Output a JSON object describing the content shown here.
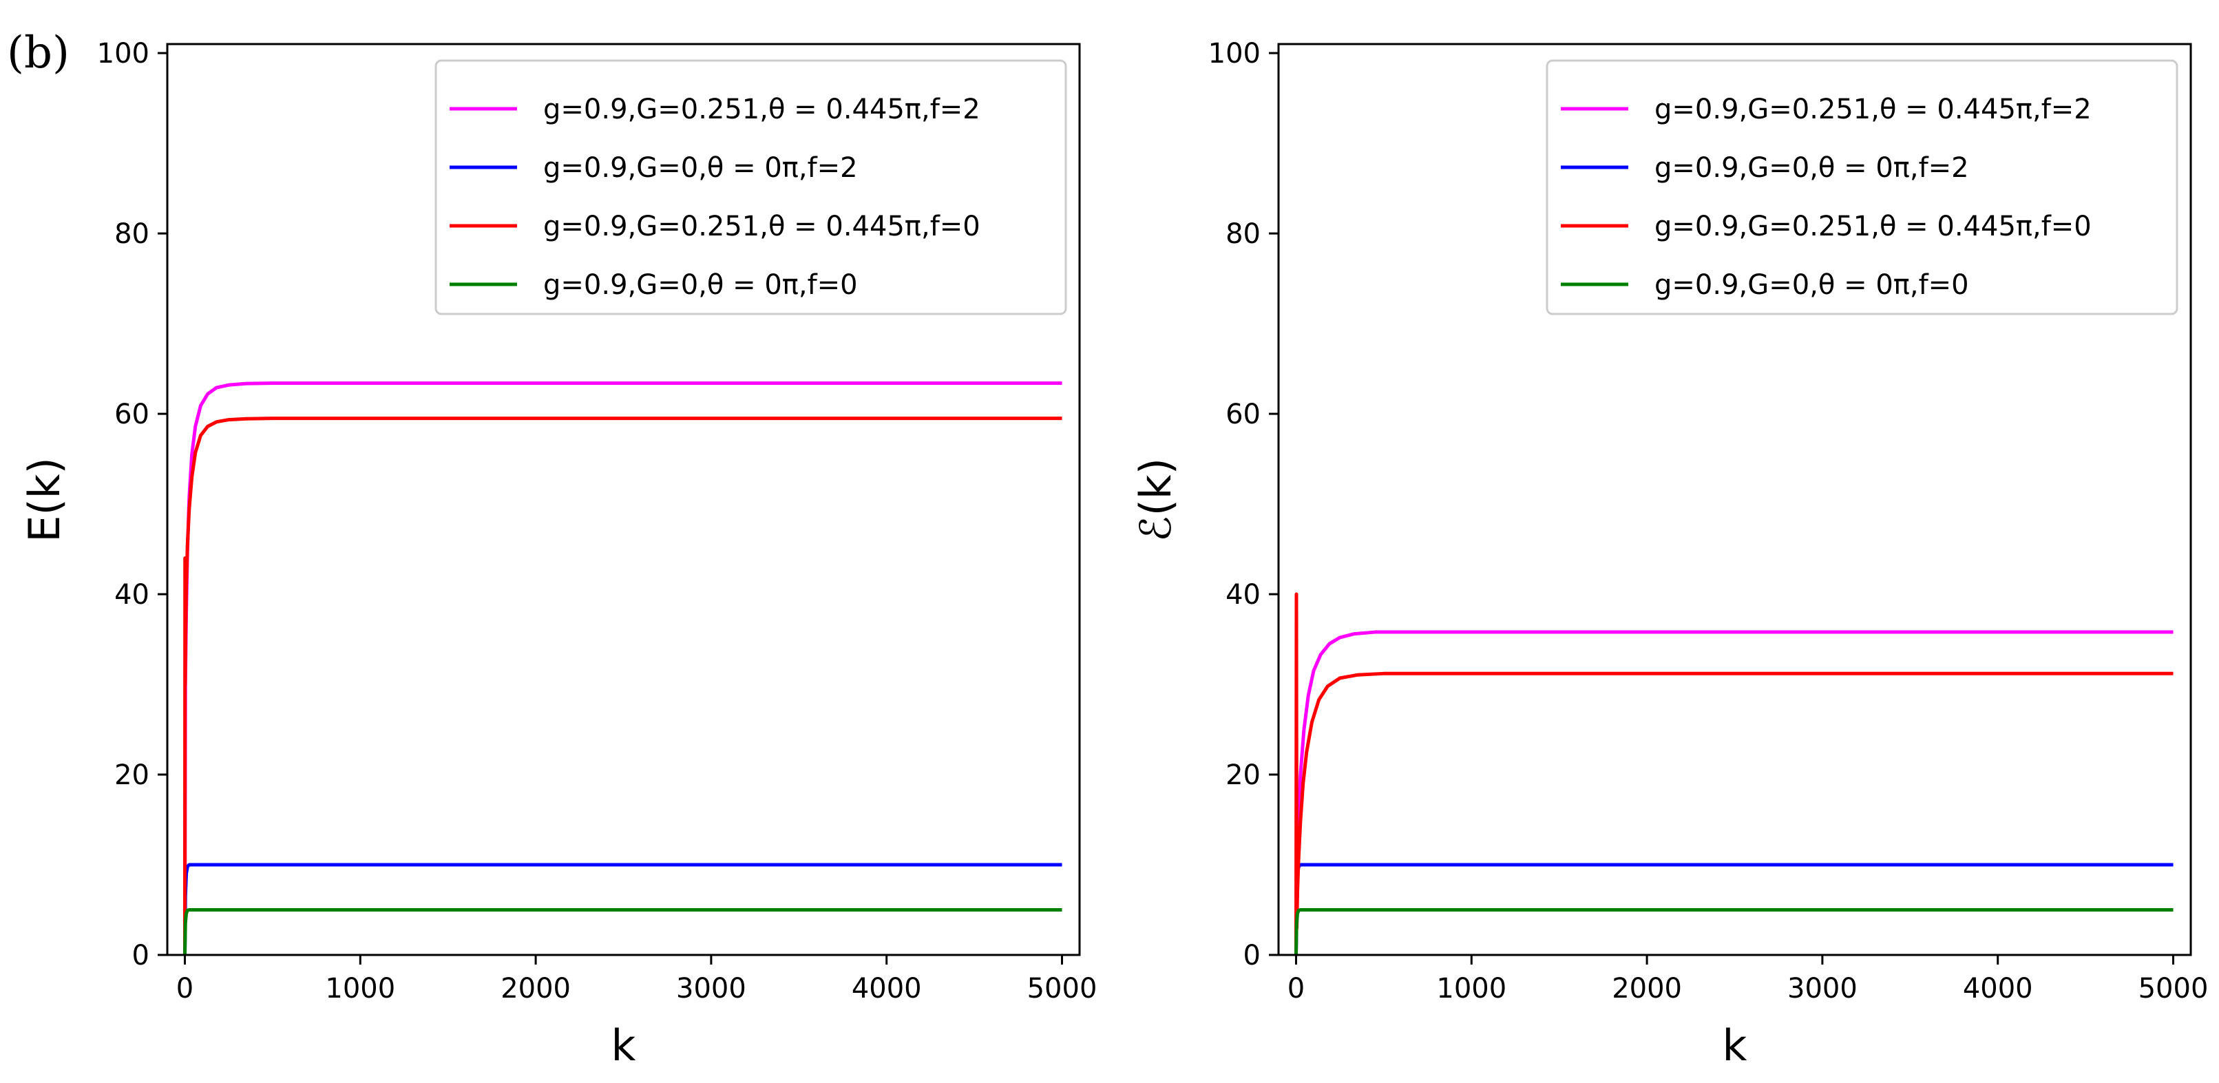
{
  "figure": {
    "panel_label": "(b)"
  },
  "chart_data": [
    {
      "type": "line",
      "title": "",
      "xlabel": "k",
      "ylabel": "E(k)",
      "xlim": [
        -100,
        5100
      ],
      "ylim": [
        0,
        101
      ],
      "xticks": [
        0,
        1000,
        2000,
        3000,
        4000,
        5000
      ],
      "yticks": [
        0,
        20,
        40,
        60,
        80,
        100
      ],
      "xtick_labels": [
        "0",
        "1000",
        "2000",
        "3000",
        "4000",
        "5000"
      ],
      "ytick_labels": [
        "0",
        "20",
        "40",
        "60",
        "80",
        "100"
      ],
      "grid": false,
      "legend_position": "top-right",
      "series": [
        {
          "name": "g=0.9,G=0.251,θ = 0.445π,f=2",
          "color": "#ff00ff",
          "x": [
            0,
            3,
            8,
            15,
            25,
            40,
            60,
            90,
            130,
            180,
            250,
            350,
            500,
            800,
            1500,
            3000,
            5000
          ],
          "y": [
            0,
            30.0,
            37.8,
            45.0,
            50.8,
            55.5,
            58.6,
            60.9,
            62.2,
            62.9,
            63.2,
            63.35,
            63.4,
            63.4,
            63.4,
            63.4,
            63.4
          ]
        },
        {
          "name": "g=0.9,G=0,θ = 0π,f=2",
          "color": "#0000ff",
          "x": [
            0,
            3,
            8,
            15,
            25,
            40,
            5000
          ],
          "y": [
            0,
            6.5,
            9.0,
            9.8,
            10.0,
            10.0,
            10.0
          ]
        },
        {
          "name": "g=0.9,G=0.251,θ = 0.445π,f=0",
          "color": "#ff0000",
          "x": [
            0,
            1,
            2,
            4,
            8,
            15,
            25,
            40,
            60,
            90,
            130,
            180,
            250,
            350,
            500,
            800,
            1500,
            3000,
            5000
          ],
          "y": [
            0,
            44.0,
            30.0,
            35.0,
            40.5,
            45.5,
            49.5,
            53.0,
            55.7,
            57.6,
            58.6,
            59.1,
            59.35,
            59.45,
            59.5,
            59.5,
            59.5,
            59.5,
            59.5
          ]
        },
        {
          "name": "g=0.9,G=0,θ = 0π,f=0",
          "color": "#008000",
          "x": [
            0,
            3,
            8,
            15,
            25,
            5000
          ],
          "y": [
            0,
            3.5,
            4.6,
            4.95,
            5.0,
            5.0
          ]
        }
      ]
    },
    {
      "type": "line",
      "title": "",
      "xlabel": "k",
      "ylabel": "ℰ(k)",
      "xlim": [
        -100,
        5100
      ],
      "ylim": [
        0,
        101
      ],
      "xticks": [
        0,
        1000,
        2000,
        3000,
        4000,
        5000
      ],
      "yticks": [
        0,
        20,
        40,
        60,
        80,
        100
      ],
      "xtick_labels": [
        "0",
        "1000",
        "2000",
        "3000",
        "4000",
        "5000"
      ],
      "ytick_labels": [
        "0",
        "20",
        "40",
        "60",
        "80",
        "100"
      ],
      "grid": false,
      "legend_position": "top-right",
      "series": [
        {
          "name": "g=0.9,G=0.251,θ = 0.445π,f=2",
          "color": "#ff00ff",
          "x": [
            0,
            5,
            12,
            25,
            45,
            70,
            100,
            140,
            190,
            250,
            330,
            450,
            700,
            1200,
            3000,
            5000
          ],
          "y": [
            0,
            8.0,
            14.0,
            20.0,
            25.0,
            28.8,
            31.5,
            33.3,
            34.5,
            35.2,
            35.6,
            35.8,
            35.8,
            35.8,
            35.8,
            35.8
          ]
        },
        {
          "name": "g=0.9,G=0,θ = 0π,f=2",
          "color": "#0000ff",
          "x": [
            0,
            3,
            8,
            15,
            25,
            40,
            5000
          ],
          "y": [
            0,
            6.5,
            9.0,
            9.8,
            10.0,
            10.0,
            10.0
          ]
        },
        {
          "name": "g=0.9,G=0.251,θ = 0.445π,f=0",
          "color": "#ff0000",
          "x": [
            0,
            2,
            4,
            8,
            14,
            25,
            40,
            60,
            90,
            130,
            180,
            250,
            350,
            500,
            800,
            1500,
            3000,
            5000
          ],
          "y": [
            0,
            40.0,
            3.0,
            7.0,
            10.5,
            14.8,
            19.0,
            22.5,
            25.8,
            28.3,
            29.8,
            30.7,
            31.05,
            31.2,
            31.2,
            31.2,
            31.2,
            31.2
          ]
        },
        {
          "name": "g=0.9,G=0,θ = 0π,f=0",
          "color": "#008000",
          "x": [
            0,
            3,
            8,
            15,
            25,
            5000
          ],
          "y": [
            0,
            3.5,
            4.6,
            4.95,
            5.0,
            5.0
          ]
        }
      ]
    }
  ]
}
